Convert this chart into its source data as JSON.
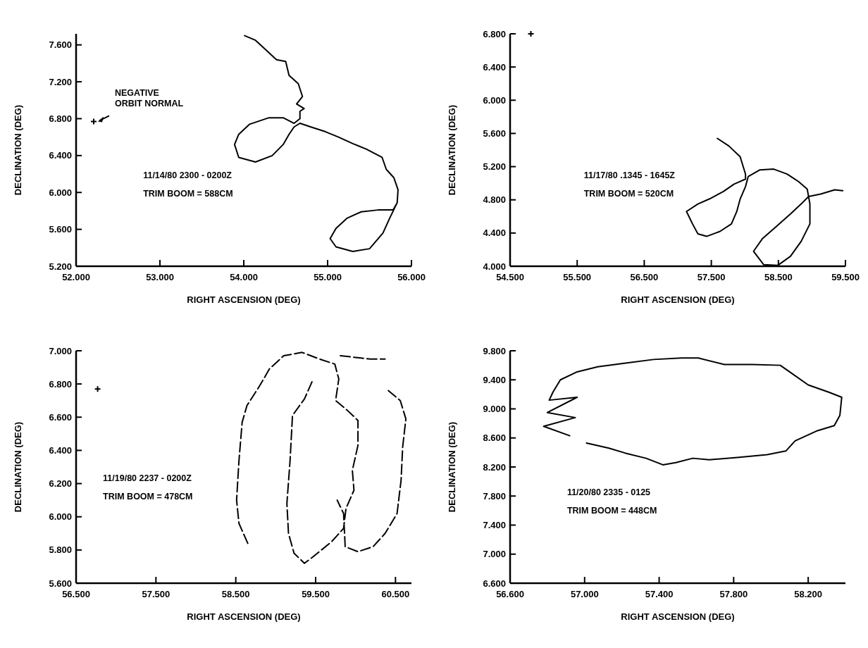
{
  "chart_data": [
    {
      "type": "line",
      "xlabel": "RIGHT ASCENSION (DEG)",
      "ylabel": "DECLINATION (DEG)",
      "annotations": [
        {
          "text": "NEGATIVE ORBIT NORMAL",
          "x": 52.21,
          "y": 6.77
        },
        "11/14/80    2300 - 0200Z",
        "TRIM BOOM = 588CM"
      ],
      "xlim": [
        52,
        56
      ],
      "ylim": [
        5.2,
        7.72
      ],
      "xticks": [
        {
          "value": 52,
          "label": "52.000"
        },
        {
          "value": 53,
          "label": "53.000"
        },
        {
          "value": 54,
          "label": "54.000"
        },
        {
          "value": 55,
          "label": "55.000"
        },
        {
          "value": 56,
          "label": "56.000"
        }
      ],
      "yticks": [
        {
          "value": 5.2,
          "label": "5.200"
        },
        {
          "value": 5.6,
          "label": "5.600"
        },
        {
          "value": 6,
          "label": "6.000"
        },
        {
          "value": 6.4,
          "label": "6.400"
        },
        {
          "value": 6.8,
          "label": "6.800"
        },
        {
          "value": 7.2,
          "label": "7.200"
        },
        {
          "value": 7.6,
          "label": "7.600"
        }
      ],
      "series": [
        {
          "color": "#000000",
          "x": [
            54.01,
            54.14,
            54.27,
            54.39,
            54.5,
            54.54,
            54.65,
            54.7,
            54.63,
            54.72,
            54.67,
            54.67,
            54.6,
            54.47,
            54.3,
            54.07,
            53.94,
            53.89,
            53.94,
            54.14,
            54.34,
            54.47,
            54.54,
            54.6,
            54.67,
            54.8,
            54.97,
            55.13,
            55.3,
            55.46,
            55.65,
            55.7,
            55.79,
            55.84,
            55.83,
            55.78,
            55.6,
            55.4,
            55.23,
            55.1,
            55.03,
            55.1,
            55.3,
            55.5,
            55.66,
            55.74,
            55.83
          ],
          "values": [
            7.7,
            7.65,
            7.54,
            7.44,
            7.42,
            7.27,
            7.18,
            7.04,
            6.96,
            6.91,
            6.88,
            6.8,
            6.75,
            6.81,
            6.81,
            6.74,
            6.63,
            6.52,
            6.38,
            6.33,
            6.4,
            6.52,
            6.63,
            6.71,
            6.75,
            6.71,
            6.66,
            6.6,
            6.53,
            6.47,
            6.38,
            6.25,
            6.16,
            6.03,
            5.89,
            5.81,
            5.81,
            5.79,
            5.72,
            5.61,
            5.5,
            5.41,
            5.36,
            5.39,
            5.56,
            5.72,
            5.89
          ]
        },
        {
          "type": "scatter",
          "color": "#000000",
          "marker": "cross",
          "x": [
            52.21
          ],
          "values": [
            6.77
          ]
        }
      ]
    },
    {
      "type": "line",
      "xlabel": "RIGHT ASCENSION (DEG)",
      "ylabel": "DECLINATION (DEG)",
      "annotations": [
        "11/17/80  .1345 - 1645Z",
        "TRIM BOOM = 520CM"
      ],
      "xlim": [
        54.5,
        59.5
      ],
      "ylim": [
        4,
        6.8
      ],
      "xticks": [
        {
          "value": 54.5,
          "label": "54.500"
        },
        {
          "value": 55.5,
          "label": "55.500"
        },
        {
          "value": 56.5,
          "label": "56.500"
        },
        {
          "value": 57.5,
          "label": "57.500"
        },
        {
          "value": 58.5,
          "label": "58.500"
        },
        {
          "value": 59.5,
          "label": "59.500"
        }
      ],
      "yticks": [
        {
          "value": 4,
          "label": "4.000"
        },
        {
          "value": 4.4,
          "label": "4.400"
        },
        {
          "value": 4.8,
          "label": "4.800"
        },
        {
          "value": 5.2,
          "label": "5.200"
        },
        {
          "value": 5.6,
          "label": "5.600"
        },
        {
          "value": 6,
          "label": "6.000"
        },
        {
          "value": 6.4,
          "label": "6.400"
        },
        {
          "value": 6.8,
          "label": "6.800"
        }
      ],
      "series": [
        {
          "color": "#000000",
          "x": [
            57.59,
            57.76,
            57.93,
            58.01,
            58.01,
            57.84,
            57.68,
            57.47,
            57.3,
            57.13,
            57.22,
            57.3,
            57.43,
            57.63,
            57.8,
            57.88,
            57.93,
            58.01,
            58.05,
            58.22,
            58.43,
            58.63,
            58.8,
            58.93,
            58.95,
            58.84,
            58.68,
            58.47,
            58.26,
            58.13,
            58.28,
            58.49,
            58.68,
            58.84,
            58.97,
            58.97,
            58.95,
            59.13,
            59.34,
            59.46
          ],
          "values": [
            5.54,
            5.45,
            5.32,
            5.11,
            5.05,
            4.99,
            4.9,
            4.81,
            4.75,
            4.66,
            4.51,
            4.39,
            4.36,
            4.42,
            4.51,
            4.66,
            4.81,
            4.96,
            5.08,
            5.16,
            5.17,
            5.11,
            5.02,
            4.93,
            4.84,
            4.75,
            4.63,
            4.48,
            4.33,
            4.18,
            4.02,
            4.01,
            4.12,
            4.3,
            4.51,
            4.75,
            4.84,
            4.87,
            4.92,
            4.91
          ]
        },
        {
          "type": "scatter",
          "color": "#000000",
          "marker": "cross",
          "x": [
            54.81
          ],
          "values": [
            6.8
          ]
        }
      ]
    },
    {
      "type": "line",
      "xlabel": "RIGHT ASCENSION (DEG)",
      "ylabel": "DECLINATION (DEG)",
      "annotations": [
        "11/19/80    2237 - 0200Z",
        "TRIM BOOM = 478CM"
      ],
      "xlim": [
        56.5,
        60.7
      ],
      "ylim": [
        5.6,
        7
      ],
      "line_style": "dashed",
      "xticks": [
        {
          "value": 56.5,
          "label": "56.500"
        },
        {
          "value": 57.5,
          "label": "57.500"
        },
        {
          "value": 58.5,
          "label": "58.500"
        },
        {
          "value": 59.5,
          "label": "59.500"
        },
        {
          "value": 60.5,
          "label": "60.500"
        }
      ],
      "yticks": [
        {
          "value": 5.6,
          "label": "5.600"
        },
        {
          "value": 5.8,
          "label": "5.800"
        },
        {
          "value": 6,
          "label": "6.000"
        },
        {
          "value": 6.2,
          "label": "6.200"
        },
        {
          "value": 6.4,
          "label": "6.400"
        },
        {
          "value": 6.6,
          "label": "6.600"
        },
        {
          "value": 6.8,
          "label": "6.800"
        },
        {
          "value": 7,
          "label": "7.000"
        }
      ],
      "series": [
        {
          "color": "#000000",
          "x": [
            58.65,
            58.54,
            58.51,
            58.54,
            58.58,
            58.64,
            58.8,
            58.92,
            59.1,
            59.33,
            59.55,
            59.74,
            59.79,
            59.75,
            59.9,
            60.03,
            60.03,
            59.96,
            59.98,
            59.88,
            59.85,
            59.7,
            59.47,
            59.36,
            59.23,
            59.16,
            59.14,
            59.18,
            59.21,
            59.36,
            59.47,
            null,
            59.81,
            60.0,
            60.18,
            60.37,
            null,
            60.41,
            60.56,
            60.63,
            60.59,
            60.57,
            60.52,
            60.37,
            60.22,
            60.03,
            59.87,
            59.85,
            59.77
          ],
          "values": [
            5.84,
            5.96,
            6.1,
            6.34,
            6.57,
            6.67,
            6.79,
            6.89,
            6.97,
            6.99,
            6.95,
            6.92,
            6.83,
            6.7,
            6.64,
            6.58,
            6.43,
            6.28,
            6.16,
            6.05,
            5.93,
            5.85,
            5.76,
            5.72,
            5.78,
            5.9,
            6.08,
            6.34,
            6.61,
            6.71,
            6.83,
            null,
            6.97,
            6.96,
            6.95,
            6.95,
            null,
            6.76,
            6.7,
            6.59,
            6.42,
            6.22,
            6.02,
            5.9,
            5.82,
            5.79,
            5.82,
            6.02,
            6.1
          ]
        },
        {
          "type": "scatter",
          "color": "#000000",
          "marker": "cross",
          "x": [
            56.77
          ],
          "values": [
            6.77
          ]
        }
      ]
    },
    {
      "type": "line",
      "xlabel": "RIGHT ASCENSION (DEG)",
      "ylabel": "DECLINATION (DEG)",
      "annotations": [
        "11/20/80    2335 - 0125",
        "TRIM BOOM = 448CM"
      ],
      "xlim": [
        56.6,
        58.4
      ],
      "ylim": [
        6.6,
        9.8
      ],
      "xticks": [
        {
          "value": 56.6,
          "label": "56.600"
        },
        {
          "value": 57,
          "label": "57.000"
        },
        {
          "value": 57.4,
          "label": "57.400"
        },
        {
          "value": 57.8,
          "label": "57.800"
        },
        {
          "value": 58.2,
          "label": "58.200"
        }
      ],
      "yticks": [
        {
          "value": 6.6,
          "label": "6.600"
        },
        {
          "value": 7,
          "label": "7.000"
        },
        {
          "value": 7.4,
          "label": "7.400"
        },
        {
          "value": 7.8,
          "label": "7.800"
        },
        {
          "value": 8.2,
          "label": "8.200"
        },
        {
          "value": 8.6,
          "label": "8.600"
        },
        {
          "value": 9,
          "label": "9.000"
        },
        {
          "value": 9.4,
          "label": "9.400"
        },
        {
          "value": 9.8,
          "label": "9.800"
        }
      ],
      "series": [
        {
          "color": "#000000",
          "x": [
            56.92,
            56.78,
            56.95,
            56.8,
            56.96,
            56.81,
            56.83,
            56.87,
            56.96,
            57.07,
            57.22,
            57.37,
            57.52,
            57.61,
            57.75,
            57.9,
            58.05,
            58.1,
            58.2,
            58.31,
            58.38,
            58.37,
            58.34,
            58.25,
            58.13,
            58.08,
            57.98,
            57.82,
            57.67,
            57.58,
            57.49,
            57.42,
            57.33,
            57.22,
            57.13,
            57.01
          ],
          "values": [
            8.63,
            8.76,
            8.88,
            8.95,
            9.16,
            9.12,
            9.23,
            9.4,
            9.51,
            9.58,
            9.63,
            9.68,
            9.7,
            9.7,
            9.61,
            9.61,
            9.6,
            9.51,
            9.33,
            9.23,
            9.16,
            8.91,
            8.77,
            8.7,
            8.56,
            8.42,
            8.37,
            8.33,
            8.3,
            8.32,
            8.26,
            8.23,
            8.32,
            8.39,
            8.46,
            8.53
          ]
        }
      ]
    }
  ]
}
